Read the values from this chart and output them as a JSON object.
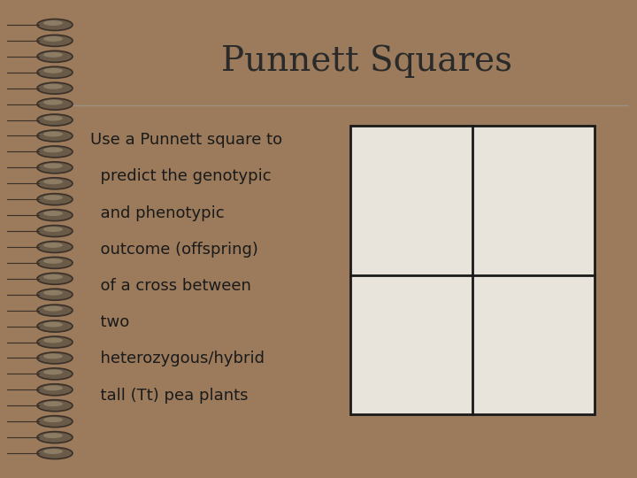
{
  "title": "Punnett Squares",
  "body_lines": [
    "Use a Punnett square to",
    "  predict the genotypic",
    "  and phenotypic",
    "  outcome (offspring)",
    "  of a cross between",
    "  two",
    "  heterozygous/hybrid",
    "  tall (Tt) pea plants"
  ],
  "bg_outer": "#9b7b5c",
  "bg_inner": "#e8e4dc",
  "title_color": "#2a2a2a",
  "text_color": "#1a1a1a",
  "title_fontsize": 28,
  "body_fontsize": 13,
  "separator_color": "#a09080",
  "grid_color": "#1a1a1a",
  "n_spirals": 28,
  "spiral_bg": "#7a6248",
  "spiral_dark": "#3a3028",
  "spiral_mid": "#6a5a48",
  "spiral_light": "#c0b090"
}
